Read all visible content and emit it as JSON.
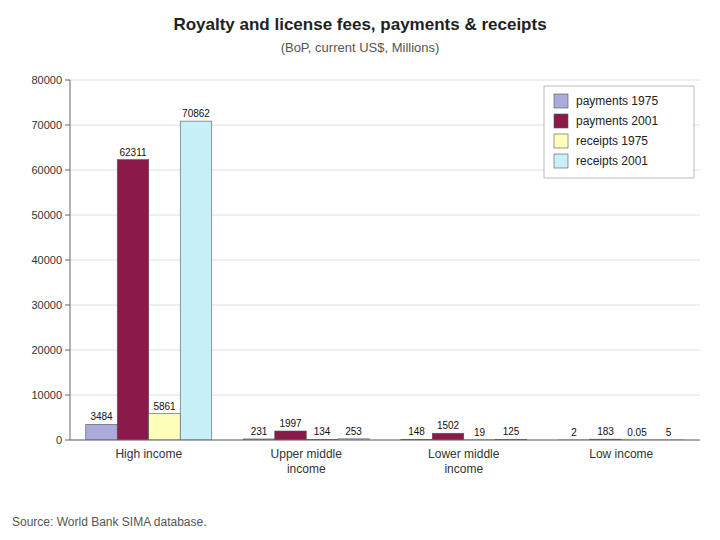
{
  "chart_data": {
    "type": "bar",
    "title": "Royalty and license fees, payments & receipts",
    "subtitle": "(BoP, current US$, Millions)",
    "annotations": [
      "Source: World Bank SIMA database."
    ],
    "categories": [
      "High income",
      "Upper middle\nincome",
      "Lower middle\nincome",
      "Low income"
    ],
    "series": [
      {
        "name": "payments 1975",
        "color": "#aaaadd",
        "values": [
          3484,
          231,
          148,
          2
        ]
      },
      {
        "name": "payments 2001",
        "color": "#8b1a4a",
        "values": [
          62311,
          1997,
          1502,
          183
        ]
      },
      {
        "name": "receipts 1975",
        "color": "#ffffbb",
        "values": [
          5861,
          134,
          19,
          0.05
        ]
      },
      {
        "name": "receipts 2001",
        "color": "#c8f0f8",
        "values": [
          70862,
          253,
          125,
          5
        ]
      }
    ],
    "ylim": [
      0,
      80000
    ],
    "yticks": [
      0,
      10000,
      20000,
      30000,
      40000,
      50000,
      60000,
      70000,
      80000
    ],
    "grid": true,
    "legend": "upper right",
    "data_labels": true
  }
}
